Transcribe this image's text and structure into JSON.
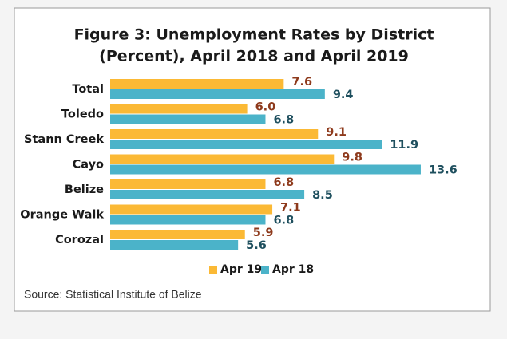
{
  "chart_data": {
    "type": "barh",
    "title": [
      "Figure 3: Unemployment Rates by District",
      "(Percent), April 2018 and April 2019"
    ],
    "categories": [
      "Total",
      "Toledo",
      "Stann Creek",
      "Cayo",
      "Belize",
      "Orange Walk",
      "Corozal"
    ],
    "series": [
      {
        "name": "Apr 19",
        "color": "#fbb935",
        "label_color": "#8e3a1c",
        "values": [
          7.6,
          6.0,
          9.1,
          9.8,
          6.8,
          7.1,
          5.9
        ],
        "value_labels": [
          "7.6",
          "6.0",
          "9.1",
          "9.8",
          "6.8",
          "7.1",
          "5.9"
        ]
      },
      {
        "name": "Apr 18",
        "color": "#4bb3c9",
        "label_color": "#1e4f5e",
        "values": [
          9.4,
          6.8,
          11.9,
          13.6,
          8.5,
          6.8,
          5.6
        ],
        "value_labels": [
          "9.4",
          "6.8",
          "11.9",
          "13.6",
          "8.5",
          "6.8",
          "5.6"
        ]
      }
    ],
    "legend": "bottom",
    "source": "Source: Statistical Institute of Belize"
  }
}
